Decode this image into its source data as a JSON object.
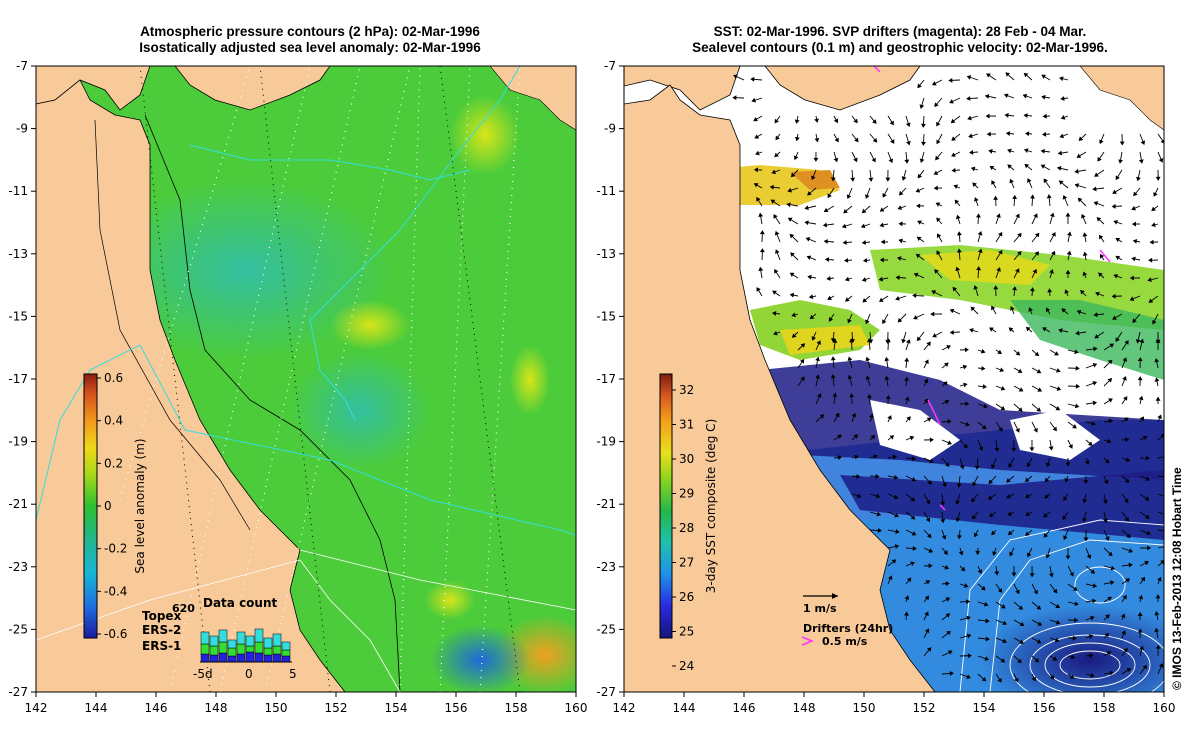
{
  "left_panel": {
    "title_line1": "Atmospheric pressure contours (2 hPa): 02-Mar-1996",
    "title_line2": "Isostatically adjusted sea level anomaly: 02-Mar-1996",
    "colorbar": {
      "label": "Sea level anomaly (m)",
      "ticks": [
        "0.6",
        "0.4",
        "0.2",
        "0",
        "-0.2",
        "-0.4",
        "-0.6"
      ],
      "values": [
        0.6,
        0.4,
        0.2,
        0,
        -0.2,
        -0.4,
        -0.6
      ]
    },
    "legend": {
      "count": "620",
      "title": "Data count",
      "missions": [
        {
          "name": "Topex",
          "color": "#33dddd"
        },
        {
          "name": "ERS-2",
          "color": "#33dd33"
        },
        {
          "name": "ERS-1",
          "color": "#2222dd"
        }
      ],
      "axis_ticks": [
        "-5d",
        "0",
        "5"
      ]
    }
  },
  "right_panel": {
    "title_line1": "SST: 02-Mar-1996. SVP drifters (magenta): 28 Feb - 04 Mar.",
    "title_line2": "Sealevel contours (0.1 m) and geostrophic velocity: 02-Mar-1996.",
    "colorbar": {
      "label": "3-day SST composite (deg C)",
      "ticks": [
        "32",
        "31",
        "30",
        "29",
        "28",
        "27",
        "26",
        "25",
        "24"
      ],
      "values": [
        32,
        31,
        30,
        29,
        28,
        27,
        26,
        25,
        24
      ]
    },
    "velocity_scale": "1 m/s",
    "drifters_label": "Drifters (24hr)",
    "drifters_scale": "0.5 m/s"
  },
  "axes": {
    "x_ticks": [
      "142",
      "144",
      "146",
      "148",
      "150",
      "152",
      "154",
      "156",
      "158",
      "160"
    ],
    "x_values": [
      142,
      144,
      146,
      148,
      150,
      152,
      154,
      156,
      158,
      160
    ],
    "y_ticks": [
      "-7",
      "-9",
      "-11",
      "-13",
      "-15",
      "-17",
      "-19",
      "-21",
      "-23",
      "-25",
      "-27"
    ],
    "y_values": [
      -7,
      -9,
      -11,
      -13,
      -15,
      -17,
      -19,
      -21,
      -23,
      -25,
      -27
    ],
    "lon_range": [
      142,
      160
    ],
    "lat_range": [
      -27,
      -7
    ]
  },
  "credit": "© IMOS 13-Feb-2013 12:08 Hobart Time",
  "colors": {
    "land": "#f8c999",
    "ocean_green": "#4ccc3a",
    "ocean_teal": "#3cc08a",
    "warm_yellow": "#c9e21c",
    "sst_cloud": "#ffffff"
  }
}
